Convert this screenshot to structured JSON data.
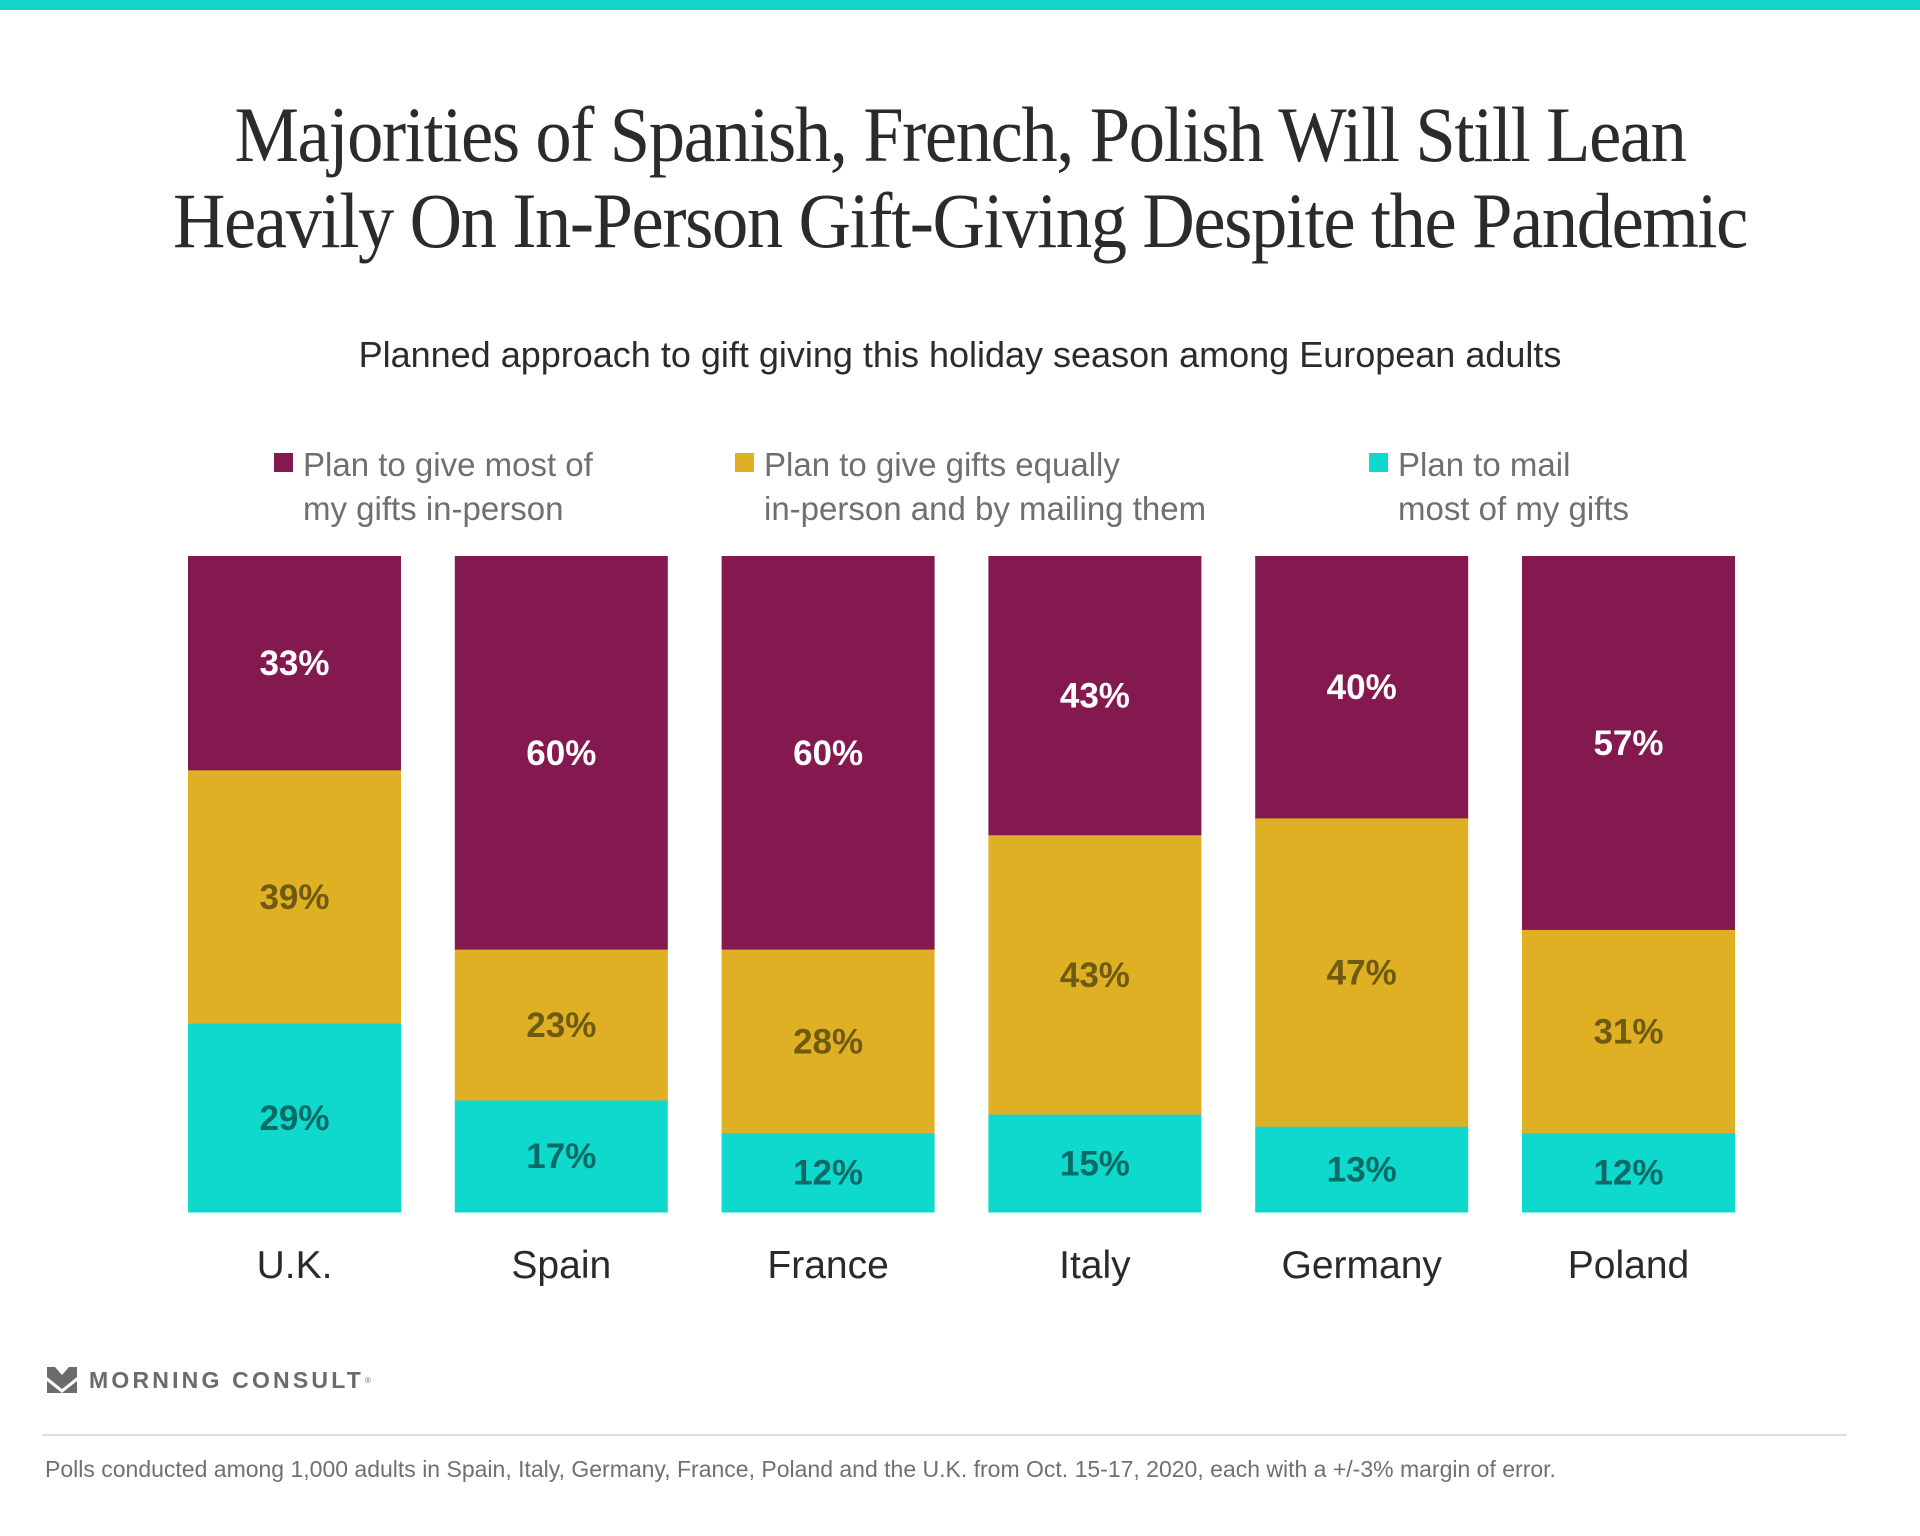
{
  "colors": {
    "stripe": "#12d4cc",
    "in_person": "#841950",
    "equal": "#e0b024",
    "mail": "#0fd8cc",
    "in_person_label": "#ffffff",
    "equal_label": "#6e5a10",
    "mail_label": "#0a6a66"
  },
  "title_lines": [
    "Majorities of Spanish, French, Polish Will Still Lean",
    "Heavily On In-Person Gift-Giving Despite the Pandemic"
  ],
  "subtitle": "Planned approach to gift giving this holiday season among European adults",
  "legend": [
    {
      "line1": "Plan to give most of",
      "line2": "my gifts in-person",
      "color_key": "in_person"
    },
    {
      "line1": "Plan to give gifts equally",
      "line2": "in-person and by mailing them",
      "color_key": "equal"
    },
    {
      "line1": "Plan to mail",
      "line2": "most of my gifts",
      "color_key": "mail"
    }
  ],
  "chart_data": {
    "type": "bar",
    "stacked": true,
    "orientation": "vertical",
    "title": "Majorities of Spanish, French, Polish Will Still Lean Heavily On In-Person Gift-Giving Despite the Pandemic",
    "subtitle": "Planned approach to gift giving this holiday season among European adults",
    "xlabel": "",
    "ylabel": "",
    "unit": "%",
    "legend_position": "top",
    "grid": false,
    "categories": [
      "U.K.",
      "Spain",
      "France",
      "Italy",
      "Germany",
      "Poland"
    ],
    "series": [
      {
        "name": "Plan to give most of my gifts in-person",
        "values": [
          33,
          60,
          60,
          43,
          40,
          57
        ]
      },
      {
        "name": "Plan to give gifts equally in-person and by mailing them",
        "values": [
          39,
          23,
          28,
          43,
          47,
          31
        ]
      },
      {
        "name": "Plan to mail most of my gifts",
        "values": [
          29,
          17,
          12,
          15,
          13,
          12
        ]
      }
    ],
    "series_color_keys": [
      "in_person",
      "equal",
      "mail"
    ],
    "series_label_color_keys": [
      "in_person_label",
      "equal_label",
      "mail_label"
    ]
  },
  "logo": {
    "name": "MORNING CONSULT",
    "mark": "®"
  },
  "footnote": "Polls conducted among 1,000 adults in Spain, Italy, Germany, France, Poland and the U.K. from Oct. 15-17, 2020, each with a +/-3% margin of error."
}
